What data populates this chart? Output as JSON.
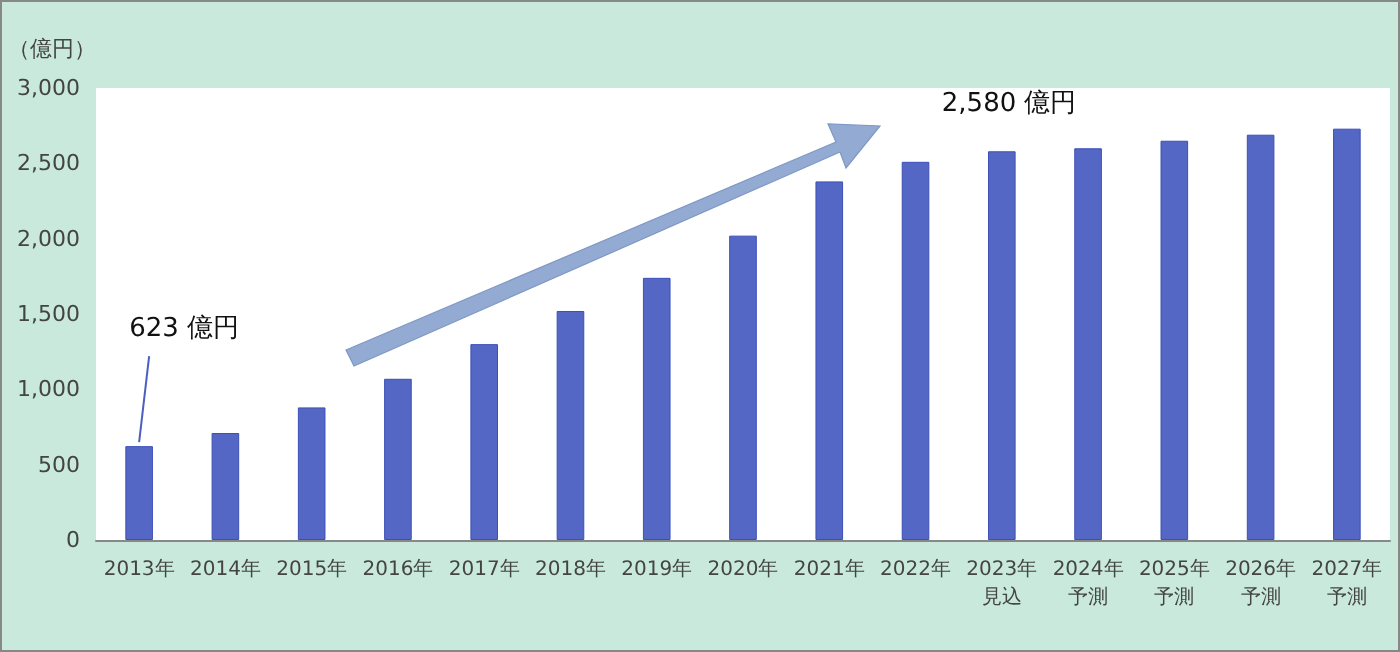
{
  "chart_data": {
    "type": "bar",
    "ylabel": "（億円）",
    "categories": [
      "2013年",
      "2014年",
      "2015年",
      "2016年",
      "2017年",
      "2018年",
      "2019年",
      "2020年",
      "2021年",
      "2022年",
      "2023年見込",
      "2024年予測",
      "2025年予測",
      "2026年予測",
      "2027年予測"
    ],
    "values": [
      623,
      710,
      880,
      1070,
      1300,
      1520,
      1740,
      2020,
      2380,
      2510,
      2580,
      2600,
      2650,
      2690,
      2730
    ],
    "color": "#5467c4",
    "ylim": [
      0,
      3000
    ],
    "yticks": [
      {
        "value": 0,
        "label": "0"
      },
      {
        "value": 500,
        "label": "500"
      },
      {
        "value": 1000,
        "label": "1,000"
      },
      {
        "value": 1500,
        "label": "1,500"
      },
      {
        "value": 2000,
        "label": "2,000"
      },
      {
        "value": 2500,
        "label": "2,500"
      },
      {
        "value": 3000,
        "label": "3,000"
      }
    ],
    "grid": false,
    "annotations": [
      {
        "text": "623 億円",
        "x": "2013年",
        "y": 623
      },
      {
        "text": "2,580 億円",
        "x": "2023年見込",
        "y": 2580
      }
    ]
  }
}
